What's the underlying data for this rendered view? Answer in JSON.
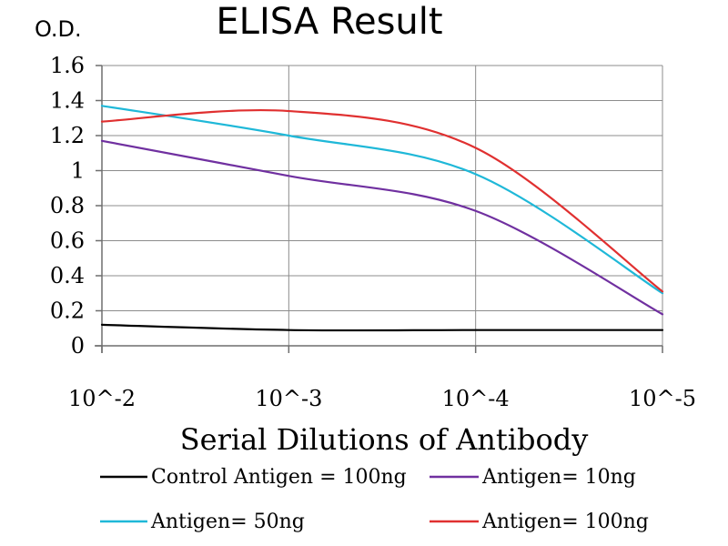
{
  "chart_data": {
    "type": "line",
    "title": "ELISA Result",
    "ylabel": "O.D.",
    "xlabel": "Serial Dilutions of Antibody",
    "categories": [
      "10^-2",
      "10^-3",
      "10^-4",
      "10^-5"
    ],
    "y_ticks": [
      "0",
      "0.2",
      "0.4",
      "0.6",
      "0.8",
      "1",
      "1.2",
      "1.4",
      "1.6"
    ],
    "ylim": [
      0,
      1.6
    ],
    "grid": true,
    "legend_position": "bottom",
    "series": [
      {
        "name": "Control Antigen = 100ng",
        "color": "#000000",
        "values": [
          0.12,
          0.09,
          0.09,
          0.09
        ]
      },
      {
        "name": "Antigen= 10ng",
        "color": "#7030a0",
        "values": [
          1.17,
          0.97,
          0.77,
          0.18
        ]
      },
      {
        "name": "Antigen= 50ng",
        "color": "#1fb8d8",
        "values": [
          1.37,
          1.2,
          0.98,
          0.3
        ]
      },
      {
        "name": "Antigen= 100ng",
        "color": "#e03030",
        "values": [
          1.28,
          1.34,
          1.13,
          0.31
        ]
      }
    ]
  }
}
